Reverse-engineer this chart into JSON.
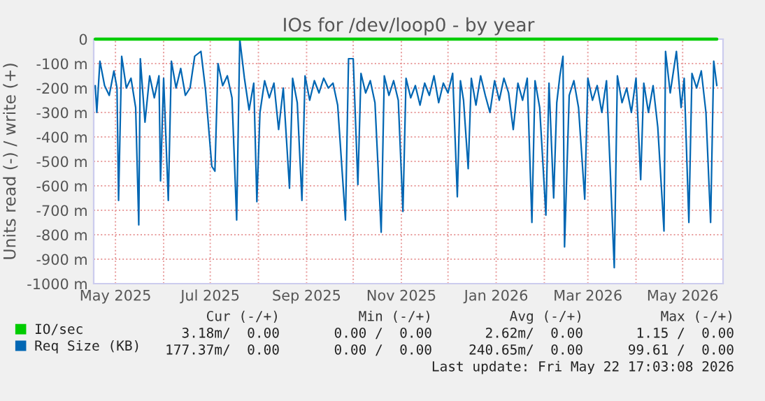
{
  "chart_data": {
    "type": "line",
    "title": "IOs for /dev/loop0 - by year",
    "ylabel": "Units read (-) / write (+)",
    "xlim": [
      "2025-04-17",
      "2026-05-27"
    ],
    "xticks": [
      {
        "value": "2025-05-01",
        "label": "May 2025"
      },
      {
        "value": "2025-06-01",
        "label": null
      },
      {
        "value": "2025-07-01",
        "label": "Jul 2025"
      },
      {
        "value": "2025-08-01",
        "label": null
      },
      {
        "value": "2025-09-01",
        "label": "Sep 2025"
      },
      {
        "value": "2025-10-01",
        "label": null
      },
      {
        "value": "2025-11-01",
        "label": "Nov 2025"
      },
      {
        "value": "2025-12-01",
        "label": null
      },
      {
        "value": "2026-01-01",
        "label": "Jan 2026"
      },
      {
        "value": "2026-02-01",
        "label": null
      },
      {
        "value": "2026-03-01",
        "label": "Mar 2026"
      },
      {
        "value": "2026-04-01",
        "label": null
      },
      {
        "value": "2026-05-01",
        "label": "May 2026"
      }
    ],
    "ylim": [
      -1000,
      0
    ],
    "yticks": [
      {
        "value": -1000,
        "label": "-1000 m"
      },
      {
        "value": -900,
        "label": "-900 m"
      },
      {
        "value": -800,
        "label": "-800 m"
      },
      {
        "value": -700,
        "label": "-700 m"
      },
      {
        "value": -600,
        "label": "-600 m"
      },
      {
        "value": -500,
        "label": "-500 m"
      },
      {
        "value": -400,
        "label": "-400 m"
      },
      {
        "value": -300,
        "label": "-300 m"
      },
      {
        "value": -200,
        "label": "-200 m"
      },
      {
        "value": -100,
        "label": "-100 m"
      },
      0
    ],
    "grid": true,
    "legend": "bottom left",
    "series": [
      {
        "name": "IO/sec",
        "color": "#00cc00",
        "x": [
          "2025-04-18",
          "2025-08-01",
          "2025-12-01",
          "2026-05-23"
        ],
        "values": [
          0,
          0,
          0,
          0
        ]
      },
      {
        "name": "Req Size (KB)",
        "color": "#0066b3",
        "x": [
          "2025-04-18",
          "2025-04-19",
          "2025-04-21",
          "2025-04-24",
          "2025-04-27",
          "2025-04-30",
          "2025-05-02",
          "2025-05-03",
          "2025-05-05",
          "2025-05-08",
          "2025-05-11",
          "2025-05-14",
          "2025-05-16",
          "2025-05-17",
          "2025-05-20",
          "2025-05-23",
          "2025-05-26",
          "2025-05-29",
          "2025-05-30",
          "2025-06-01",
          "2025-06-04",
          "2025-06-06",
          "2025-06-09",
          "2025-06-12",
          "2025-06-15",
          "2025-06-18",
          "2025-06-21",
          "2025-06-25",
          "2025-06-28",
          "2025-07-02",
          "2025-07-04",
          "2025-07-06",
          "2025-07-09",
          "2025-07-12",
          "2025-07-15",
          "2025-07-18",
          "2025-07-20",
          "2025-07-23",
          "2025-07-26",
          "2025-07-29",
          "2025-07-31",
          "2025-08-02",
          "2025-08-05",
          "2025-08-08",
          "2025-08-11",
          "2025-08-14",
          "2025-08-17",
          "2025-08-21",
          "2025-08-23",
          "2025-08-26",
          "2025-08-29",
          "2025-08-31",
          "2025-09-03",
          "2025-09-06",
          "2025-09-09",
          "2025-09-12",
          "2025-09-15",
          "2025-09-18",
          "2025-09-21",
          "2025-09-26",
          "2025-09-28",
          "2025-10-01",
          "2025-10-04",
          "2025-10-06",
          "2025-10-09",
          "2025-10-12",
          "2025-10-15",
          "2025-10-19",
          "2025-10-21",
          "2025-10-24",
          "2025-10-27",
          "2025-10-30",
          "2025-11-02",
          "2025-11-04",
          "2025-11-07",
          "2025-11-10",
          "2025-11-13",
          "2025-11-16",
          "2025-11-19",
          "2025-11-22",
          "2025-11-25",
          "2025-11-28",
          "2025-12-01",
          "2025-12-04",
          "2025-12-07",
          "2025-12-09",
          "2025-12-11",
          "2025-12-14",
          "2025-12-16",
          "2025-12-19",
          "2025-12-22",
          "2025-12-25",
          "2025-12-28",
          "2025-12-31",
          "2026-01-03",
          "2026-01-06",
          "2026-01-09",
          "2026-01-12",
          "2026-01-15",
          "2026-01-18",
          "2026-01-21",
          "2026-01-24",
          "2026-01-26",
          "2026-01-29",
          "2026-02-02",
          "2026-02-04",
          "2026-02-07",
          "2026-02-09",
          "2026-02-11",
          "2026-02-13",
          "2026-02-14",
          "2026-02-17",
          "2026-02-20",
          "2026-02-23",
          "2026-02-27",
          "2026-03-01",
          "2026-03-04",
          "2026-03-07",
          "2026-03-10",
          "2026-03-13",
          "2026-03-18",
          "2026-03-20",
          "2026-03-23",
          "2026-03-26",
          "2026-03-29",
          "2026-04-01",
          "2026-04-04",
          "2026-04-06",
          "2026-04-09",
          "2026-04-12",
          "2026-04-15",
          "2026-04-19",
          "2026-04-20",
          "2026-04-23",
          "2026-04-27",
          "2026-04-30",
          "2026-05-02",
          "2026-05-05",
          "2026-05-07",
          "2026-05-10",
          "2026-05-13",
          "2026-05-16",
          "2026-05-19",
          "2026-05-21",
          "2026-05-23"
        ],
        "values": [
          -190,
          -300,
          -90,
          -190,
          -230,
          -130,
          -200,
          -660,
          -70,
          -200,
          -160,
          -280,
          -760,
          -80,
          -340,
          -150,
          -240,
          -150,
          -580,
          -160,
          -660,
          -90,
          -200,
          -120,
          -230,
          -200,
          -70,
          -50,
          -210,
          -520,
          -540,
          -100,
          -190,
          -150,
          -240,
          -740,
          0,
          -160,
          -290,
          -180,
          -665,
          -300,
          -170,
          -240,
          -180,
          -370,
          -200,
          -610,
          -160,
          -260,
          -660,
          -150,
          -250,
          -170,
          -220,
          -160,
          -200,
          -180,
          -270,
          -740,
          -80,
          -80,
          -595,
          -140,
          -220,
          -170,
          -260,
          -790,
          -150,
          -230,
          -170,
          -250,
          -705,
          -160,
          -240,
          -190,
          -270,
          -180,
          -230,
          -150,
          -260,
          -180,
          -220,
          -140,
          -645,
          -170,
          -250,
          -530,
          -160,
          -270,
          -150,
          -230,
          -300,
          -170,
          -250,
          -160,
          -220,
          -370,
          -180,
          -250,
          -160,
          -750,
          -170,
          -280,
          -720,
          -180,
          -650,
          -260,
          -150,
          -70,
          -850,
          -230,
          -170,
          -280,
          -655,
          -160,
          -250,
          -190,
          -300,
          -170,
          -935,
          -150,
          -260,
          -200,
          -300,
          -160,
          -575,
          -180,
          -300,
          -190,
          -360,
          -785,
          -50,
          -220,
          -50,
          -280,
          -160,
          -750,
          -140,
          -200,
          -130,
          -300,
          -750,
          -90,
          -190
        ]
      }
    ],
    "annotations": [
      "Cur (-/+)",
      "Min (-/+)",
      "Avg (-/+)",
      "Max (-/+)",
      "3.18m/  0.00",
      "0.00 /  0.00",
      "2.62m/  0.00",
      "1.15 /  0.00",
      "177.37m/  0.00",
      "0.00 /  0.00",
      "240.65m/  0.00",
      "99.61 /  0.00",
      "Last update: Fri May 22 17:03:08 2026"
    ]
  }
}
